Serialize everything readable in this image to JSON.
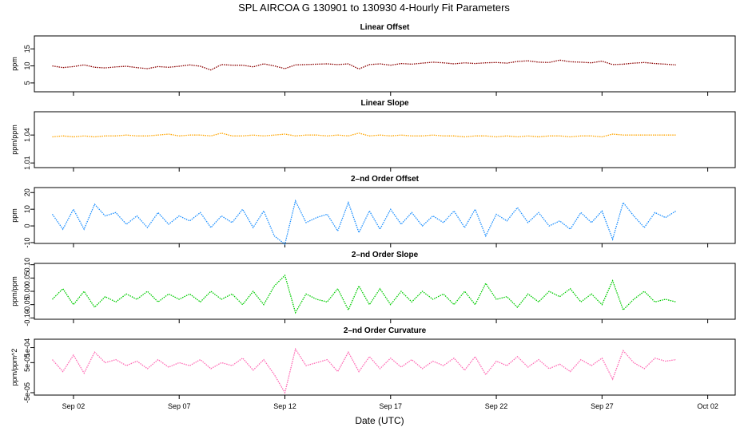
{
  "title": "SPL   AIRCOA G   130901 to 130930   4-Hourly Fit Parameters",
  "xlabel": "Date (UTC)",
  "x_ticks": [
    {
      "day": 2,
      "label": "Sep 02"
    },
    {
      "day": 7,
      "label": "Sep 07"
    },
    {
      "day": 12,
      "label": "Sep 12"
    },
    {
      "day": 17,
      "label": "Sep 17"
    },
    {
      "day": 22,
      "label": "Sep 22"
    },
    {
      "day": 27,
      "label": "Sep 27"
    },
    {
      "day": 32,
      "label": "Oct 02"
    }
  ],
  "xlim": [
    0.15,
    33.3
  ],
  "chart_data": [
    {
      "type": "line",
      "title": "Linear Offset",
      "ylabel": "ppm",
      "color": "#8b0000",
      "ylim": [
        2.4,
        18.8
      ],
      "y_ticks": [
        {
          "v": 5,
          "label": "5"
        },
        {
          "v": 10,
          "label": "10"
        },
        {
          "v": 15,
          "label": "15"
        }
      ],
      "x": [
        1.0,
        1.5,
        2.0,
        2.5,
        3.0,
        3.5,
        4.0,
        4.5,
        5.0,
        5.5,
        6.0,
        6.5,
        7.0,
        7.5,
        8.0,
        8.5,
        9.0,
        9.5,
        10.0,
        10.5,
        11.0,
        11.5,
        12.0,
        12.5,
        13.0,
        13.5,
        14.0,
        14.5,
        15.0,
        15.5,
        16.0,
        16.5,
        17.0,
        17.5,
        18.0,
        18.5,
        19.0,
        19.5,
        20.0,
        20.5,
        21.0,
        21.5,
        22.0,
        22.5,
        23.0,
        23.5,
        24.0,
        24.5,
        25.0,
        25.5,
        26.0,
        26.5,
        27.0,
        27.5,
        28.0,
        28.5,
        29.0,
        29.5,
        30.0,
        30.5
      ],
      "values": [
        10.0,
        9.5,
        9.8,
        10.3,
        9.6,
        9.4,
        9.7,
        9.9,
        9.5,
        9.2,
        9.8,
        9.6,
        9.9,
        10.3,
        9.9,
        8.8,
        10.4,
        10.2,
        10.2,
        9.7,
        10.6,
        10.0,
        9.2,
        10.3,
        10.4,
        10.5,
        10.6,
        10.4,
        10.6,
        9.1,
        10.4,
        10.6,
        10.2,
        10.7,
        10.5,
        10.8,
        11.1,
        10.9,
        10.6,
        10.9,
        10.7,
        10.9,
        11.0,
        10.8,
        11.3,
        11.5,
        11.1,
        11.0,
        11.7,
        11.2,
        11.1,
        10.9,
        11.4,
        10.4,
        10.5,
        10.8,
        11.0,
        10.7,
        10.5,
        10.3
      ]
    },
    {
      "type": "line",
      "title": "Linear Slope",
      "ylabel": "ppm/ppm",
      "color": "#ffa500",
      "ylim": [
        1.005,
        1.065
      ],
      "y_ticks": [
        {
          "v": 1.01,
          "label": "1.01"
        },
        {
          "v": 1.04,
          "label": "1.04"
        }
      ],
      "x": [
        1.0,
        1.5,
        2.0,
        2.5,
        3.0,
        3.5,
        4.0,
        4.5,
        5.0,
        5.5,
        6.0,
        6.5,
        7.0,
        7.5,
        8.0,
        8.5,
        9.0,
        9.5,
        10.0,
        10.5,
        11.0,
        11.5,
        12.0,
        12.5,
        13.0,
        13.5,
        14.0,
        14.5,
        15.0,
        15.5,
        16.0,
        16.5,
        17.0,
        17.5,
        18.0,
        18.5,
        19.0,
        19.5,
        20.0,
        20.5,
        21.0,
        21.5,
        22.0,
        22.5,
        23.0,
        23.5,
        24.0,
        24.5,
        25.0,
        25.5,
        26.0,
        26.5,
        27.0,
        27.5,
        28.0,
        28.5,
        29.0,
        29.5,
        30.0,
        30.5
      ],
      "values": [
        1.038,
        1.039,
        1.038,
        1.039,
        1.038,
        1.039,
        1.039,
        1.04,
        1.039,
        1.039,
        1.04,
        1.041,
        1.039,
        1.04,
        1.04,
        1.039,
        1.042,
        1.039,
        1.039,
        1.04,
        1.039,
        1.04,
        1.041,
        1.039,
        1.04,
        1.04,
        1.039,
        1.04,
        1.039,
        1.042,
        1.039,
        1.04,
        1.039,
        1.04,
        1.039,
        1.039,
        1.04,
        1.039,
        1.039,
        1.038,
        1.039,
        1.039,
        1.038,
        1.039,
        1.038,
        1.039,
        1.038,
        1.039,
        1.039,
        1.038,
        1.039,
        1.039,
        1.038,
        1.041,
        1.04,
        1.04,
        1.04,
        1.04,
        1.04,
        1.04
      ]
    },
    {
      "type": "line",
      "title": "2–nd Order Offset",
      "ylabel": "ppm",
      "color": "#1e90ff",
      "ylim": [
        -10.5,
        23
      ],
      "y_ticks": [
        {
          "v": -10,
          "label": "-10"
        },
        {
          "v": 0,
          "label": "0"
        },
        {
          "v": 10,
          "label": "10"
        },
        {
          "v": 20,
          "label": "20"
        }
      ],
      "x": [
        1.0,
        1.5,
        2.0,
        2.5,
        3.0,
        3.5,
        4.0,
        4.5,
        5.0,
        5.5,
        6.0,
        6.5,
        7.0,
        7.5,
        8.0,
        8.5,
        9.0,
        9.5,
        10.0,
        10.5,
        11.0,
        11.5,
        12.0,
        12.5,
        13.0,
        13.5,
        14.0,
        14.5,
        15.0,
        15.5,
        16.0,
        16.5,
        17.0,
        17.5,
        18.0,
        18.5,
        19.0,
        19.5,
        20.0,
        20.5,
        21.0,
        21.5,
        22.0,
        22.5,
        23.0,
        23.5,
        24.0,
        24.5,
        25.0,
        25.5,
        26.0,
        26.5,
        27.0,
        27.5,
        28.0,
        28.5,
        29.0,
        29.5,
        30.0,
        30.5
      ],
      "values": [
        7,
        -2,
        10,
        -2,
        13,
        6,
        8,
        1,
        6,
        -1,
        8,
        1,
        6,
        3,
        8,
        -1,
        6,
        2,
        10,
        -1,
        9,
        -6,
        -11,
        15,
        2,
        5,
        7,
        -3,
        14,
        -4,
        9,
        -2,
        10,
        1,
        8,
        0,
        6,
        2,
        9,
        -1,
        10,
        -6,
        7,
        3,
        11,
        2,
        8,
        0,
        3,
        -2,
        8,
        2,
        9,
        -8,
        14,
        6,
        -1,
        8,
        5,
        9
      ]
    },
    {
      "type": "line",
      "title": "2–nd Order Slope",
      "ylabel": "ppm/ppm",
      "color": "#00cc00",
      "ylim": [
        -0.105,
        0.105
      ],
      "y_ticks": [
        {
          "v": -0.1,
          "label": "-0.10"
        },
        {
          "v": -0.05,
          "label": "-0.05"
        },
        {
          "v": 0,
          "label": "0.00"
        },
        {
          "v": 0.05,
          "label": "0.05"
        },
        {
          "v": 0.1,
          "label": "0.10"
        }
      ],
      "x": [
        1.0,
        1.5,
        2.0,
        2.5,
        3.0,
        3.5,
        4.0,
        4.5,
        5.0,
        5.5,
        6.0,
        6.5,
        7.0,
        7.5,
        8.0,
        8.5,
        9.0,
        9.5,
        10.0,
        10.5,
        11.0,
        11.5,
        12.0,
        12.5,
        13.0,
        13.5,
        14.0,
        14.5,
        15.0,
        15.5,
        16.0,
        16.5,
        17.0,
        17.5,
        18.0,
        18.5,
        19.0,
        19.5,
        20.0,
        20.5,
        21.0,
        21.5,
        22.0,
        22.5,
        23.0,
        23.5,
        24.0,
        24.5,
        25.0,
        25.5,
        26.0,
        26.5,
        27.0,
        27.5,
        28.0,
        28.5,
        29.0,
        29.5,
        30.0,
        30.5
      ],
      "values": [
        -0.03,
        0.01,
        -0.05,
        0.0,
        -0.06,
        -0.02,
        -0.04,
        -0.01,
        -0.03,
        0.0,
        -0.04,
        -0.01,
        -0.03,
        -0.01,
        -0.04,
        0.0,
        -0.03,
        -0.01,
        -0.05,
        0.0,
        -0.05,
        0.02,
        0.06,
        -0.08,
        -0.01,
        -0.03,
        -0.04,
        0.01,
        -0.07,
        0.02,
        -0.05,
        0.01,
        -0.05,
        0.0,
        -0.04,
        0.0,
        -0.03,
        -0.01,
        -0.05,
        0.0,
        -0.05,
        0.03,
        -0.03,
        -0.02,
        -0.06,
        -0.01,
        -0.04,
        0.0,
        -0.02,
        0.01,
        -0.04,
        -0.01,
        -0.05,
        0.04,
        -0.07,
        -0.03,
        0.0,
        -0.04,
        -0.03,
        -0.04
      ]
    },
    {
      "type": "line",
      "title": "2–nd Order Curvature",
      "ylabel": "ppm/ppm^2",
      "color": "#ff69b4",
      "ylim": [
        -5.8e-05,
        0.000128
      ],
      "y_ticks": [
        {
          "v": -5e-05,
          "label": "-5e-05"
        },
        {
          "v": 5e-05,
          "label": "5e-05"
        },
        {
          "v": 0.0001,
          "label": "1e-04"
        }
      ],
      "x": [
        1.0,
        1.5,
        2.0,
        2.5,
        3.0,
        3.5,
        4.0,
        4.5,
        5.0,
        5.5,
        6.0,
        6.5,
        7.0,
        7.5,
        8.0,
        8.5,
        9.0,
        9.5,
        10.0,
        10.5,
        11.0,
        11.5,
        12.0,
        12.5,
        13.0,
        13.5,
        14.0,
        14.5,
        15.0,
        15.5,
        16.0,
        16.5,
        17.0,
        17.5,
        18.0,
        18.5,
        19.0,
        19.5,
        20.0,
        20.5,
        21.0,
        21.5,
        22.0,
        22.5,
        23.0,
        23.5,
        24.0,
        24.5,
        25.0,
        25.5,
        26.0,
        26.5,
        27.0,
        27.5,
        28.0,
        28.5,
        29.0,
        29.5,
        30.0,
        30.5
      ],
      "values": [
        6e-05,
        2e-05,
        7.5e-05,
        1.5e-05,
        8.5e-05,
        5e-05,
        6e-05,
        4e-05,
        5.5e-05,
        3e-05,
        6e-05,
        3.5e-05,
        5e-05,
        4e-05,
        6e-05,
        3e-05,
        5e-05,
        4e-05,
        6.5e-05,
        2.5e-05,
        6e-05,
        1e-05,
        -5e-05,
        9.5e-05,
        4e-05,
        5e-05,
        6e-05,
        2e-05,
        8.5e-05,
        2e-05,
        7e-05,
        3e-05,
        6.5e-05,
        3.5e-05,
        6e-05,
        3e-05,
        5.5e-05,
        4e-05,
        6.5e-05,
        2.5e-05,
        7e-05,
        1e-05,
        5.5e-05,
        4e-05,
        7e-05,
        3.5e-05,
        6e-05,
        3e-05,
        4.5e-05,
        2e-05,
        6e-05,
        4e-05,
        6.5e-05,
        -5e-06,
        9e-05,
        5e-05,
        3e-05,
        6.5e-05,
        5.5e-05,
        6e-05
      ]
    }
  ]
}
